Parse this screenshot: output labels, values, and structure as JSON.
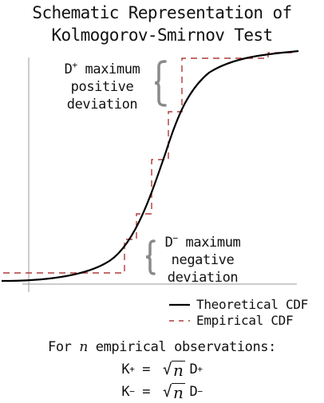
{
  "title": {
    "line1": "Schematic Representation of",
    "line2": "Kolmogorov-Smirnov Test"
  },
  "annotations": {
    "d_plus": {
      "symbol": "D",
      "sup": "+",
      "line1_rest": " maximum",
      "line2": "positive",
      "line3": "deviation"
    },
    "d_minus": {
      "symbol": "D",
      "sup": "−",
      "line1_rest": " maximum",
      "line2": "negative",
      "line3": "deviation"
    }
  },
  "legend": {
    "theoretical": "Theoretical CDF",
    "empirical": "Empirical CDF"
  },
  "formula": {
    "intro_pre": "For ",
    "intro_var": "n",
    "intro_post": " empirical observations:",
    "k_plus": {
      "lhs": "K",
      "lhs_sup": "+",
      "eq": " = ",
      "radicand": "n",
      "rhs": "D",
      "rhs_sup": "+"
    },
    "k_minus": {
      "lhs": "K",
      "lhs_sup": "−",
      "eq": " = ",
      "radicand": "n",
      "rhs": "D",
      "rhs_sup": "−"
    }
  },
  "colors": {
    "theoretical_line": "#000000",
    "empirical_line": "#b03a3a",
    "axis": "#9a9a9a",
    "brace": "#8a8a8a"
  }
}
